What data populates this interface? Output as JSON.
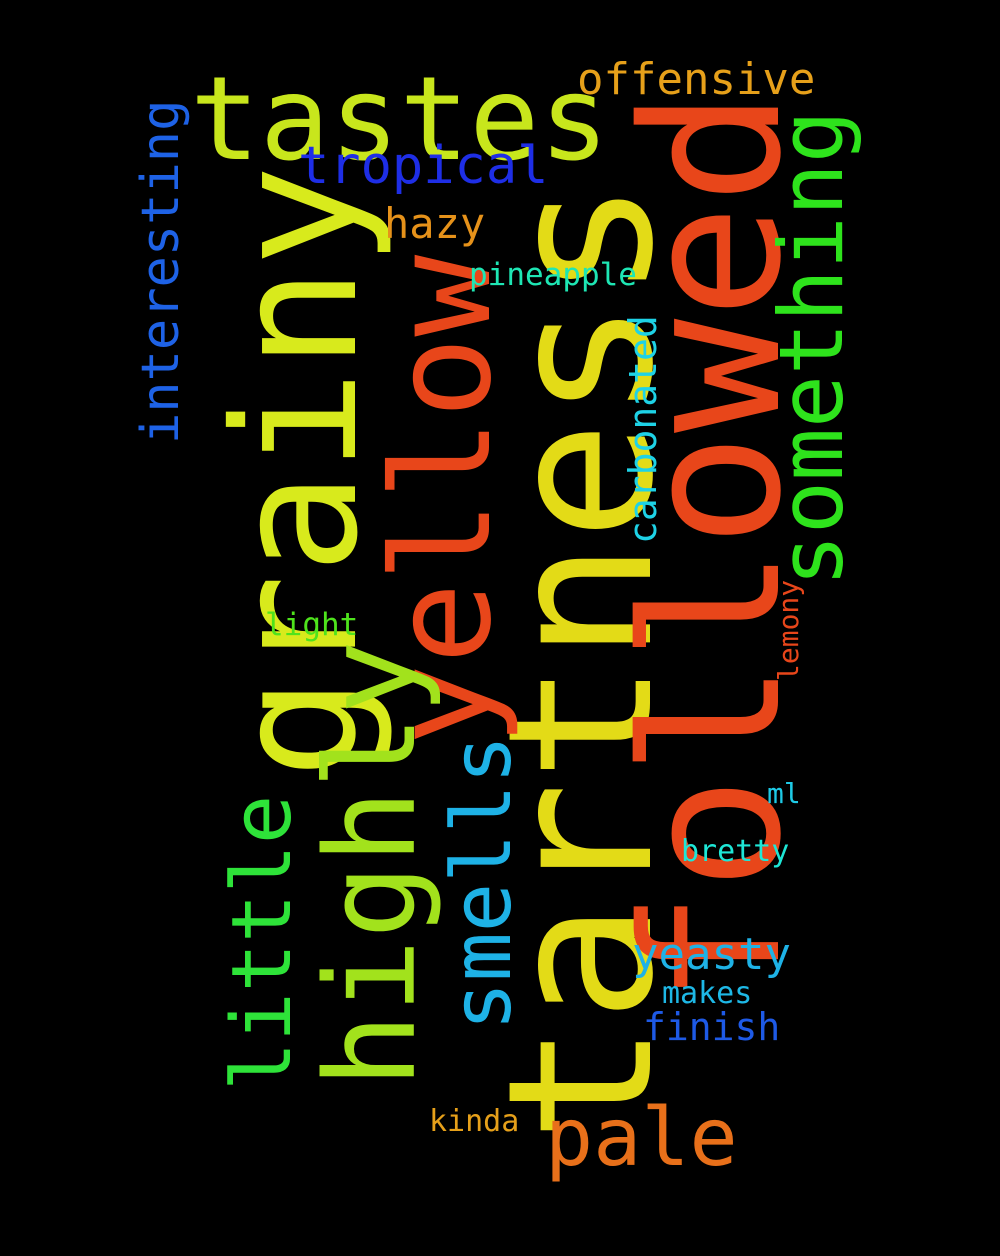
{
  "background": "#000000",
  "words": [
    {
      "text": "tartness",
      "color": "#E3DB17",
      "weight": 1.0,
      "rotated": true
    },
    {
      "text": "followed",
      "color": "#E8461A",
      "weight": 0.92,
      "rotated": true
    },
    {
      "text": "grainy",
      "color": "#D8EA1C",
      "weight": 0.82,
      "rotated": true
    },
    {
      "text": "yellow",
      "color": "#E8461A",
      "weight": 0.66,
      "rotated": true
    },
    {
      "text": "highly",
      "color": "#A2E21C",
      "weight": 0.6,
      "rotated": true
    },
    {
      "text": "tastes",
      "color": "#C8E61C",
      "weight": 0.56,
      "rotated": false
    },
    {
      "text": "something",
      "color": "#2EE31C",
      "weight": 0.42,
      "rotated": true
    },
    {
      "text": "little",
      "color": "#2EE339",
      "weight": 0.4,
      "rotated": true
    },
    {
      "text": "smells",
      "color": "#1EB2E6",
      "weight": 0.4,
      "rotated": true
    },
    {
      "text": "pale",
      "color": "#E8701A",
      "weight": 0.38,
      "rotated": false
    },
    {
      "text": "tropical",
      "color": "#1E2EE6",
      "weight": 0.26,
      "rotated": false
    },
    {
      "text": "interesting",
      "color": "#1E62E6",
      "weight": 0.26,
      "rotated": true
    },
    {
      "text": "offensive",
      "color": "#E6A01A",
      "weight": 0.25,
      "rotated": false
    },
    {
      "text": "yeasty",
      "color": "#1EB2E6",
      "weight": 0.25,
      "rotated": false
    },
    {
      "text": "hazy",
      "color": "#E6921A",
      "weight": 0.24,
      "rotated": false
    },
    {
      "text": "carbonated",
      "color": "#1ED2E6",
      "weight": 0.22,
      "rotated": true
    },
    {
      "text": "finish",
      "color": "#1E5AE6",
      "weight": 0.22,
      "rotated": false
    },
    {
      "text": "pineapple",
      "color": "#1EE6B4",
      "weight": 0.18,
      "rotated": false
    },
    {
      "text": "light",
      "color": "#4EE31C",
      "weight": 0.18,
      "rotated": false
    },
    {
      "text": "bretty",
      "color": "#1EE6D6",
      "weight": 0.18,
      "rotated": false
    },
    {
      "text": "makes",
      "color": "#1EB8E6",
      "weight": 0.18,
      "rotated": false
    },
    {
      "text": "kinda",
      "color": "#E6A01A",
      "weight": 0.18,
      "rotated": false
    },
    {
      "text": "lemony",
      "color": "#E8461A",
      "weight": 0.16,
      "rotated": true
    },
    {
      "text": "ml",
      "color": "#1ECAE6",
      "weight": 0.16,
      "rotated": false
    }
  ]
}
